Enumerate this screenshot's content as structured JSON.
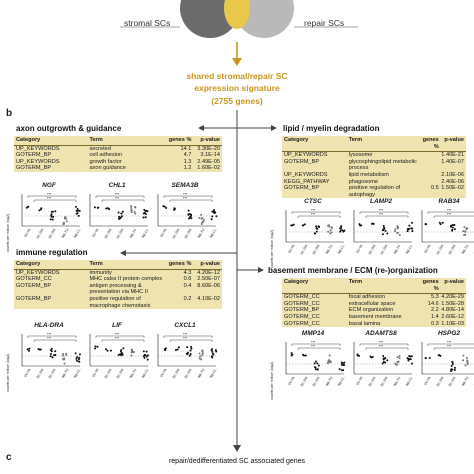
{
  "venn": {
    "left_label": "stromal SCs",
    "right_label": "repair SCs",
    "colors": {
      "left": "#6b6b6b",
      "overlap": "#e8c84a",
      "right": "#b9b9b9",
      "arrow": "#c9961f"
    }
  },
  "signature": {
    "line1": "shared stromal/repair SC",
    "line2": "expression signature",
    "line3": "(2755 genes)"
  },
  "panel_b": "b",
  "panel_c": "c",
  "bottom_caption": "repair/dedifferentiated SC associated genes",
  "table_headers": {
    "category": "Category",
    "term": "Term",
    "genes": "genes %",
    "pvalue": "p-value"
  },
  "x_labels": [
    "SC-IN",
    "SC-DN",
    "SC-DN",
    "NB-TU",
    "NB-CL"
  ],
  "y_label": "counts per million (log2)",
  "sections": [
    {
      "title": "axon outgrowth & guidance",
      "rows": [
        {
          "category": "UP_KEYWORDS",
          "term": "secreted",
          "genes": "14.1",
          "pvalue": "3.30E-20"
        },
        {
          "category": "GOTERM_BP",
          "term": "cell adhesion",
          "genes": "4.7",
          "pvalue": "3.1E-14"
        },
        {
          "category": "UP_KEYWORDS",
          "term": "growth factor",
          "genes": "1.3",
          "pvalue": "2.49E-05"
        },
        {
          "category": "GOTERM_BP",
          "term": "axon guidance",
          "genes": "1.2",
          "pvalue": "1.60E-02"
        }
      ],
      "genes": [
        "NGF",
        "CHL1",
        "SEMA3B"
      ]
    },
    {
      "title": "lipid / myelin degradation",
      "rows": [
        {
          "category": "UP_KEYWORDS",
          "term": "lysosome",
          "genes": "",
          "pvalue": "1.40E-21"
        },
        {
          "category": "GOTERM_BP",
          "term": "glycosphingolipid metabolic process",
          "genes": "",
          "pvalue": "1.40E-07"
        },
        {
          "category": "UP_KEYWORDS",
          "term": "lipid metabolism",
          "genes": "",
          "pvalue": "2.10E-06"
        },
        {
          "category": "KEGG_PATHWAY",
          "term": "phagosome",
          "genes": "",
          "pvalue": "2.40E-06"
        },
        {
          "category": "GOTERM_BP",
          "term": "positive regulation of autophagy",
          "genes": "0.5",
          "pvalue": "1.50E-02"
        }
      ],
      "genes": [
        "CTSC",
        "LAMP2",
        "RAB34"
      ]
    },
    {
      "title": "immune regulation",
      "rows": [
        {
          "category": "UP_KEYWORDS",
          "term": "immunity",
          "genes": "4.3",
          "pvalue": "4.20E-12"
        },
        {
          "category": "GOTERM_CC",
          "term": "MHC calss II protein complex",
          "genes": "0.6",
          "pvalue": "2.50E-07"
        },
        {
          "category": "GOTERM_BP",
          "term": "antigen processing & presentation via MHC II",
          "genes": "0.4",
          "pvalue": "8.60E-06"
        },
        {
          "category": "GOTERM_BP",
          "term": "positive regulation of macrophage chemotaxis",
          "genes": "0.2",
          "pvalue": "4.10E-02"
        }
      ],
      "genes": [
        "HLA-DRA",
        "LIF",
        "CXCL1"
      ]
    },
    {
      "title": "basement membrane / ECM (re-)organization",
      "rows": [
        {
          "category": "GOTERM_CC",
          "term": "focal adhesion",
          "genes": "5.3",
          "pvalue": "4.20E-29"
        },
        {
          "category": "GOTERM_CC",
          "term": "extracellular space",
          "genes": "14.6",
          "pvalue": "1.50E-28"
        },
        {
          "category": "GOTERM_BP",
          "term": "ECM organization",
          "genes": "2.2",
          "pvalue": "4.80E-14"
        },
        {
          "category": "GOTERM_CC",
          "term": "basement membrane",
          "genes": "1.4",
          "pvalue": "2.60E-12"
        },
        {
          "category": "GOTERM_CC",
          "term": "basal lamina",
          "genes": "0.3",
          "pvalue": "1.10E-03"
        }
      ],
      "genes": [
        "MMP14",
        "ADAMTS8",
        "HSPG2"
      ]
    }
  ],
  "sig_marks": "***"
}
